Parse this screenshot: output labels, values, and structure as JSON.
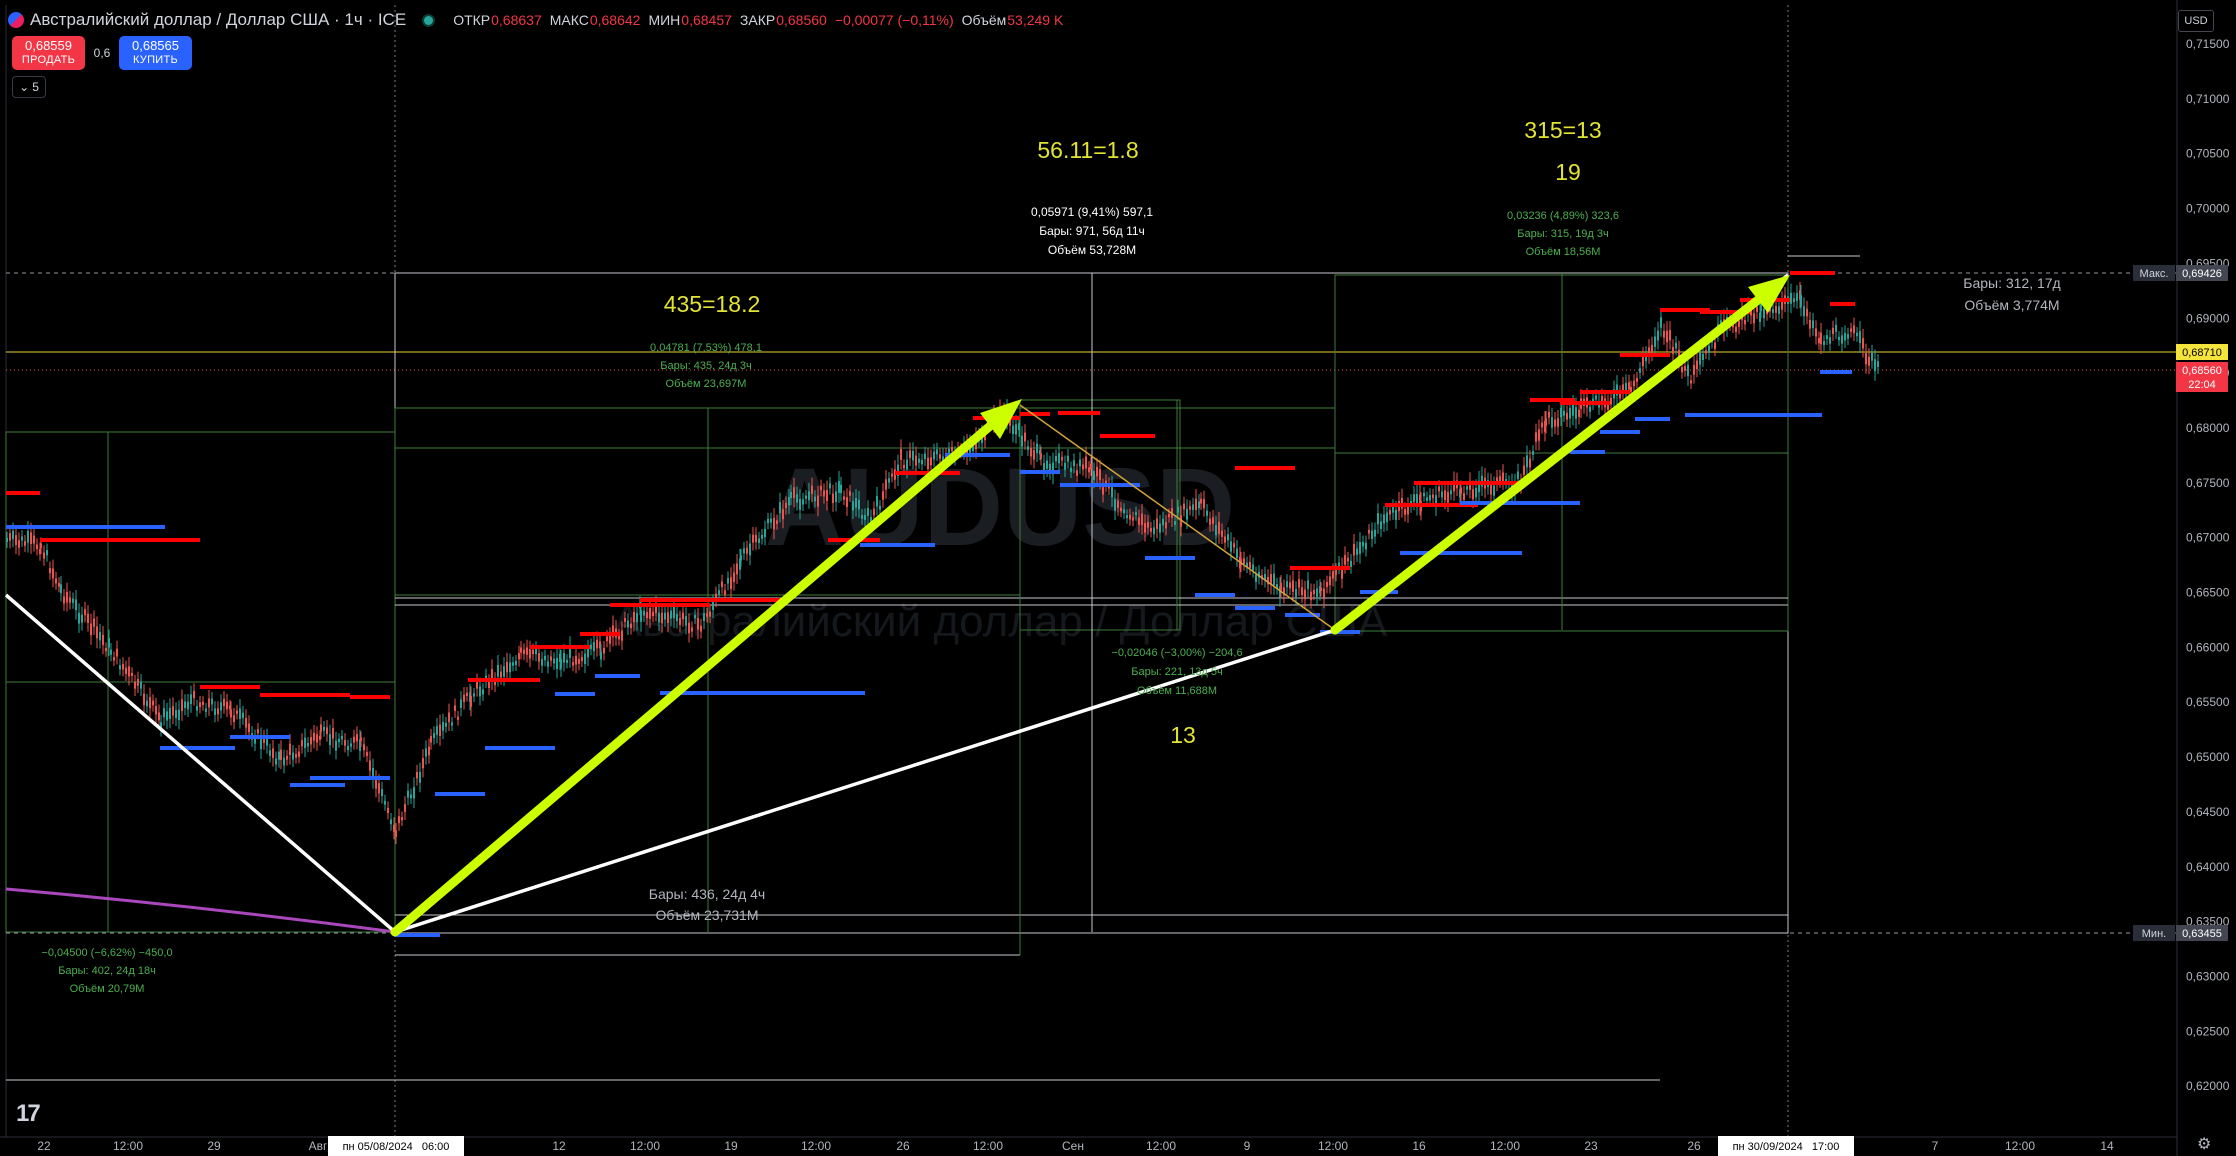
{
  "header": {
    "title": "Австралийский доллар / Доллар США · 1ч · ICE",
    "ohlc": [
      {
        "label": "ОТКР",
        "value": "0,68637"
      },
      {
        "label": "МАКС",
        "value": "0,68642"
      },
      {
        "label": "МИН",
        "value": "0,68457"
      },
      {
        "label": "ЗАКР",
        "value": "0,68560"
      },
      {
        "label": "",
        "value": "−0,00077 (−0,11%)"
      },
      {
        "label": "Объём",
        "value": "53,249 K"
      }
    ]
  },
  "trade": {
    "sell_price": "0,68559",
    "sell_label": "ПРОДАТЬ",
    "spread": "0,6",
    "buy_price": "0,68565",
    "buy_label": "КУПИТЬ"
  },
  "collapse_count": "5",
  "currency_button": "USD",
  "watermark": {
    "symbol": "AUDUSD",
    "name": "Австралийский доллар / Доллар США"
  },
  "colors": {
    "up_level": "#ff0000",
    "down_level": "#2962ff",
    "arrow": "#ccff00",
    "pattern": "#ffffff",
    "ma": "#ab47bc",
    "measure": "#4caf50",
    "price_up": "#26a69a",
    "price_down": "#ef5350"
  },
  "price_axis": {
    "ticks": [
      "0,71500",
      "0,71000",
      "0,70500",
      "0,70000",
      "0,69500",
      "0,69000",
      "0,68500",
      "0,68000",
      "0,67500",
      "0,67000",
      "0,66500",
      "0,66000",
      "0,65500",
      "0,65000",
      "0,64500",
      "0,64000",
      "0,63500",
      "0,63000",
      "0,62500",
      "0,62000"
    ],
    "max_label": "Макс.",
    "max_value": "0,69426",
    "min_label": "Мин.",
    "min_value": "0,63455",
    "yellow_value": "0,68710",
    "current_value": "0,68560",
    "countdown": "22:04"
  },
  "time_axis": {
    "ticks": [
      "22",
      "12:00",
      "29",
      "Авг",
      "12",
      "12:00",
      "19",
      "12:00",
      "26",
      "12:00",
      "Сен",
      "12:00",
      "9",
      "12:00",
      "16",
      "12:00",
      "23",
      "26",
      "7",
      "12:00",
      "14"
    ],
    "cursor_left": "пн 05/08/2024   06:00",
    "cursor_right": "пн 30/09/2024   17:00"
  },
  "annotations": {
    "ratio1": "435=18.2",
    "ratio2": "56.11=1.8",
    "ratio3_a": "315=13",
    "ratio3_b": "19",
    "ratio4": "13"
  },
  "measures": [
    {
      "l1": "0,05971 (9,41%) 597,1",
      "l2": "Бары: 971, 56д 11ч",
      "l3": "Объём 53,728M"
    },
    {
      "l1": "0,04781 (7,53%) 478,1",
      "l2": "Бары: 435, 24д 3ч",
      "l3": "Объём 23,697M"
    },
    {
      "l1": "0,03236 (4,89%) 323,6",
      "l2": "Бары: 315, 19д 3ч",
      "l3": "Объём 18,56M"
    },
    {
      "l1": "−0,02046 (−3,00%) −204,6",
      "l2": "Бары: 221, 13д 5ч",
      "l3": "Объём 11,688M"
    },
    {
      "l1": "−0,04500 (−6,62%) −450,0",
      "l2": "Бары: 402, 24д 18ч",
      "l3": "Объём 20,79M"
    },
    {
      "l1": "",
      "l2": "Бары: 436, 24д 4ч",
      "l3": "Объём 23,731M"
    },
    {
      "l1": "",
      "l2": "Бары: 312, 17д",
      "l3": "Объём 3,774M"
    }
  ]
}
